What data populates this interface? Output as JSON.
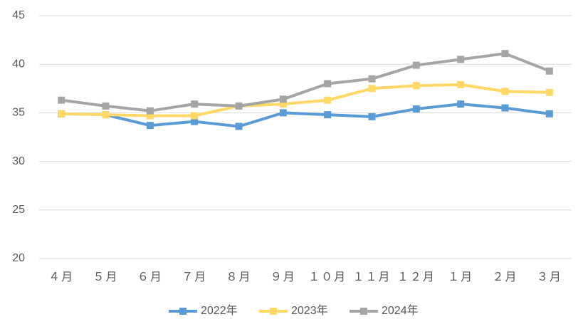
{
  "chart_data": {
    "type": "line",
    "categories": [
      "４月",
      "５月",
      "６月",
      "７月",
      "８月",
      "９月",
      "１０月",
      "１１月",
      "１２月",
      "１月",
      "２月",
      "３月"
    ],
    "series": [
      {
        "name": "2022年",
        "color": "#5b9bd5",
        "values": [
          34.9,
          34.8,
          33.7,
          34.1,
          33.6,
          35.0,
          34.8,
          34.6,
          35.4,
          35.9,
          35.5,
          34.9
        ]
      },
      {
        "name": "2023年",
        "color": "#ffd966",
        "values": [
          34.9,
          34.8,
          34.7,
          34.7,
          35.7,
          35.9,
          36.3,
          37.5,
          37.8,
          37.9,
          37.2,
          37.1
        ]
      },
      {
        "name": "2024年",
        "color": "#a5a5a5",
        "values": [
          36.3,
          35.7,
          35.2,
          35.9,
          35.7,
          36.4,
          38.0,
          38.5,
          39.9,
          40.5,
          41.1,
          39.3
        ]
      }
    ],
    "ylim": [
      20,
      45
    ],
    "yticks": [
      20,
      25,
      30,
      35,
      40,
      45
    ],
    "grid": true,
    "legend": "bottom"
  }
}
